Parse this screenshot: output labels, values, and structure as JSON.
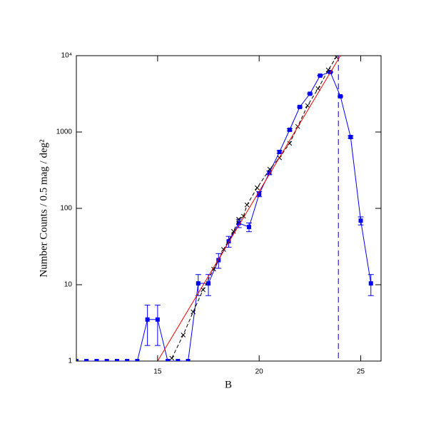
{
  "chart_data": {
    "type": "line",
    "xlabel": "B",
    "ylabel": "Number Counts / 0.5 mag / deg²",
    "xlim": [
      11,
      26
    ],
    "ylim": [
      1,
      10000
    ],
    "ylog": true,
    "xticks": [
      15,
      20,
      25
    ],
    "yticks": [
      1,
      10,
      100,
      1000,
      {
        "value": 10000,
        "label": "10⁴"
      }
    ],
    "vline": 23.9,
    "series": [
      {
        "color": "#0000ff",
        "marker": "square",
        "x": [
          11,
          11.5,
          12,
          12.5,
          13,
          13.5,
          14,
          14.5,
          15,
          15.5,
          16,
          16.5,
          17,
          17.5,
          18,
          18.5,
          19,
          19.5,
          20,
          20.5,
          21,
          21.5,
          22,
          22.5,
          23,
          23.5,
          24,
          24.5,
          25,
          25.5
        ],
        "values": [
          1,
          1,
          1,
          1,
          1,
          1,
          1,
          3.5,
          3.5,
          1,
          1,
          1,
          10.4,
          10.4,
          21,
          37,
          64,
          57,
          154,
          293,
          548,
          1070,
          2130,
          3170,
          5480,
          6100,
          2930,
          860,
          69,
          10.4
        ],
        "errors": [
          0,
          0,
          0,
          0,
          0,
          0,
          0,
          1.9,
          1.9,
          0,
          0,
          0,
          3.2,
          3.2,
          4.6,
          6,
          8,
          7.5,
          12,
          17,
          23,
          33,
          46,
          56,
          74,
          78,
          54,
          29,
          8.3,
          3.2
        ]
      },
      {
        "color": "#000000",
        "marker": "cross",
        "dashed": true,
        "x": [
          15.7,
          16.26,
          16.75,
          17.24,
          17.76,
          18.25,
          18.74,
          18.99,
          19.23,
          19.4,
          19.9,
          20.52,
          21.0,
          21.5,
          21.9,
          22.38,
          22.9,
          23.4,
          23.8
        ],
        "values": [
          1.09,
          2.2,
          4.4,
          8.6,
          16,
          29,
          50,
          72,
          79,
          111,
          186,
          326,
          460,
          710,
          1180,
          2220,
          3700,
          6500,
          9600
        ]
      },
      {
        "color": "#ff0000",
        "marker": "none",
        "x": [
          15,
          24
        ],
        "values": [
          1,
          10000
        ]
      }
    ]
  }
}
